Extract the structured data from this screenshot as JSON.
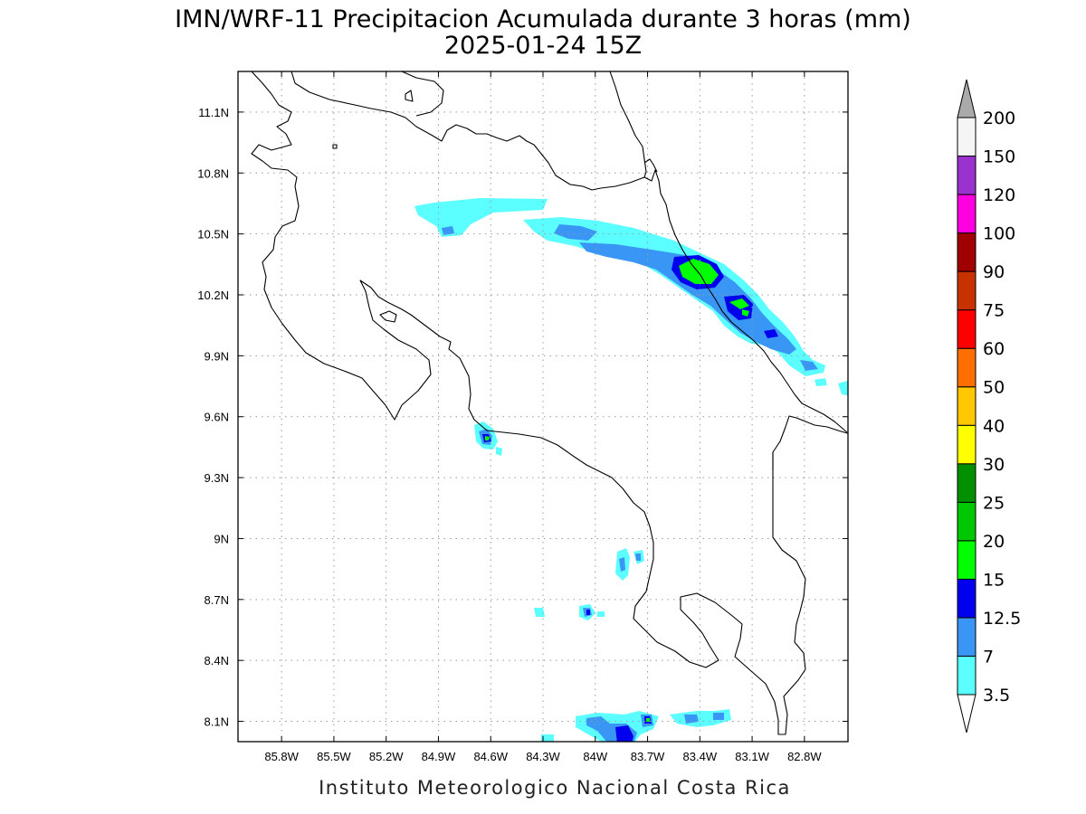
{
  "title": {
    "line1": "IMN/WRF-11 Precipitacion Acumulada durante 3 horas (mm)",
    "line2": "2025-01-24 15Z"
  },
  "footer": "Instituto Meteorologico Nacional Costa Rica",
  "map": {
    "lon_range": [
      -86.05,
      -82.55
    ],
    "lat_range": [
      8.0,
      11.3
    ],
    "lon_ticks": [
      {
        "value": -85.8,
        "label": "85.8W"
      },
      {
        "value": -85.5,
        "label": "85.5W"
      },
      {
        "value": -85.2,
        "label": "85.2W"
      },
      {
        "value": -84.9,
        "label": "84.9W"
      },
      {
        "value": -84.6,
        "label": "84.6W"
      },
      {
        "value": -84.3,
        "label": "84.3W"
      },
      {
        "value": -84.0,
        "label": "84W"
      },
      {
        "value": -83.7,
        "label": "83.7W"
      },
      {
        "value": -83.4,
        "label": "83.4W"
      },
      {
        "value": -83.1,
        "label": "83.1W"
      },
      {
        "value": -82.8,
        "label": "82.8W"
      }
    ],
    "lat_ticks": [
      {
        "value": 11.1,
        "label": "11.1N"
      },
      {
        "value": 10.8,
        "label": "10.8N"
      },
      {
        "value": 10.5,
        "label": "10.5N"
      },
      {
        "value": 10.2,
        "label": "10.2N"
      },
      {
        "value": 9.9,
        "label": "9.9N"
      },
      {
        "value": 9.6,
        "label": "9.6N"
      },
      {
        "value": 9.3,
        "label": "9.3N"
      },
      {
        "value": 9.0,
        "label": "9N"
      },
      {
        "value": 8.7,
        "label": "8.7N"
      },
      {
        "value": 8.4,
        "label": "8.4N"
      },
      {
        "value": 8.1,
        "label": "8.1N"
      }
    ],
    "grid": true
  },
  "colorbar": {
    "levels": [
      {
        "label": "3.5",
        "color": "#5cffff"
      },
      {
        "label": "7",
        "color": "#3a96f5"
      },
      {
        "label": "12.5",
        "color": "#0000ee"
      },
      {
        "label": "15",
        "color": "#00ff00"
      },
      {
        "label": "20",
        "color": "#00c800"
      },
      {
        "label": "25",
        "color": "#009000"
      },
      {
        "label": "30",
        "color": "#ffff00"
      },
      {
        "label": "40",
        "color": "#ffc800"
      },
      {
        "label": "50",
        "color": "#ff6e00"
      },
      {
        "label": "60",
        "color": "#ff0000"
      },
      {
        "label": "75",
        "color": "#c83200"
      },
      {
        "label": "90",
        "color": "#a00000"
      },
      {
        "label": "100",
        "color": "#ff00e0"
      },
      {
        "label": "120",
        "color": "#9a32cd"
      },
      {
        "label": "150",
        "color": "#f5f5f5"
      },
      {
        "label": "200",
        "color": "#aaaaaa"
      }
    ]
  }
}
